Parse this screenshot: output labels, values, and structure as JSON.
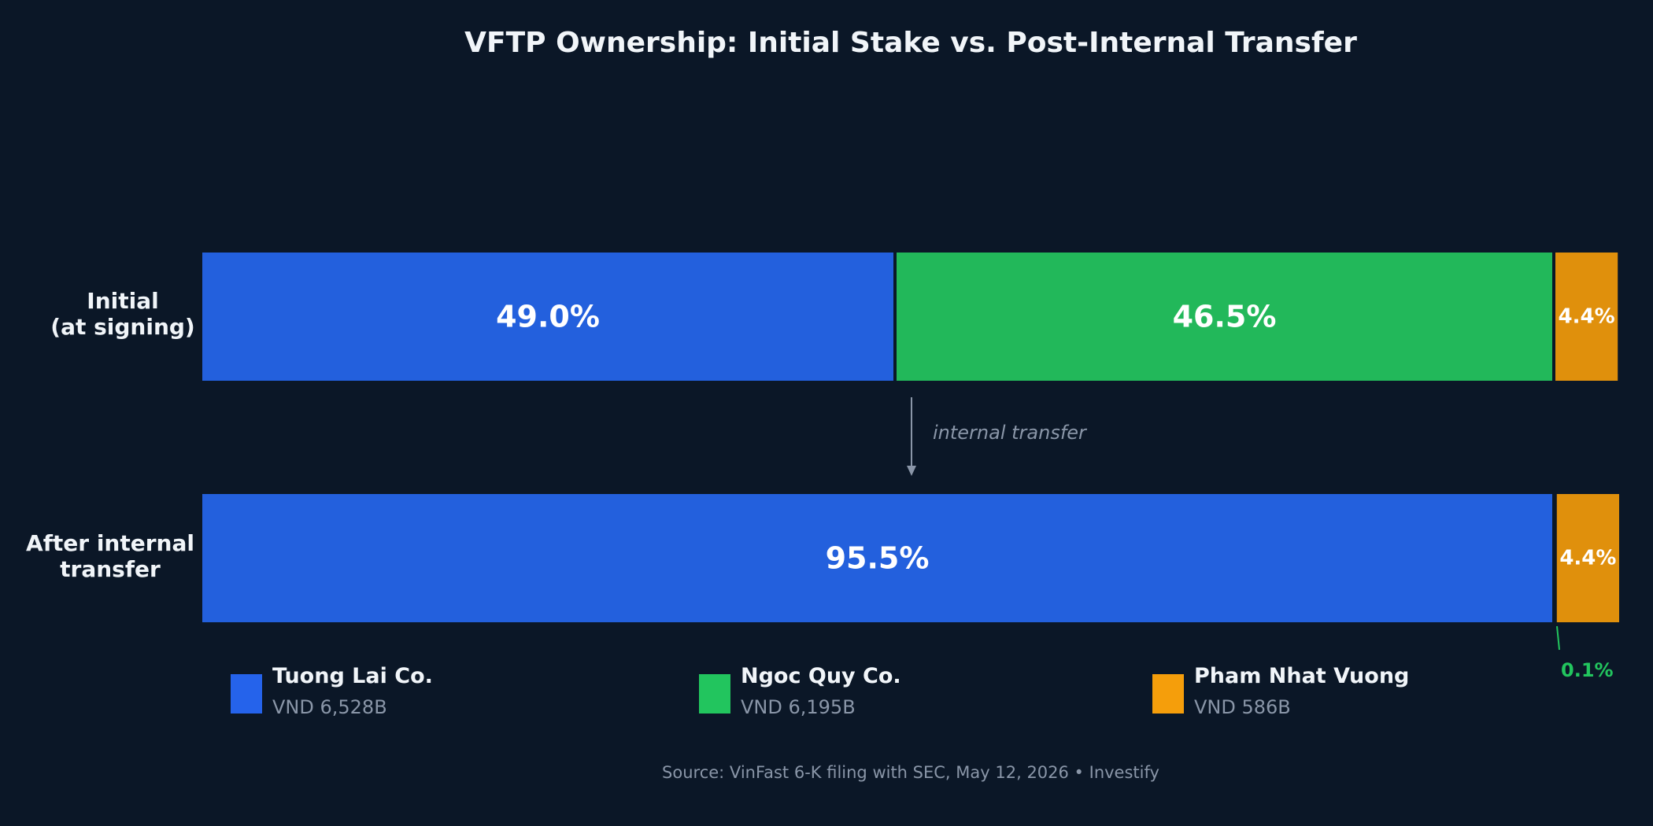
{
  "chart_data": {
    "type": "bar",
    "orientation": "horizontal",
    "stacked": true,
    "title": "VFTP Ownership: Initial Stake vs. Post-Internal Transfer",
    "xlim": [
      0,
      100
    ],
    "grid": false,
    "legend_position": "bottom",
    "categories": [
      [
        "Initial",
        "(at signing)"
      ],
      [
        "After internal",
        "transfer"
      ]
    ],
    "series": [
      {
        "name": "Tuong Lai Co.",
        "color": "#2360dd",
        "values": [
          49.0,
          95.5
        ],
        "labels": [
          "49.0%",
          "95.5%"
        ]
      },
      {
        "name": "Ngoc Quy Co.",
        "color": "#22b85a",
        "values": [
          46.5,
          0.1
        ],
        "labels": [
          "46.5%",
          ""
        ]
      },
      {
        "name": "Pham Nhat Vuong",
        "color": "#e0900c",
        "values": [
          4.4,
          4.4
        ],
        "labels": [
          "4.4%",
          "4.4%"
        ]
      }
    ],
    "annotations": {
      "transfer_note": "internal transfer",
      "residual_label": "0.1%"
    },
    "legend": [
      {
        "name": "Tuong Lai Co.",
        "value": "VND 6,528B",
        "color": "#2563eb"
      },
      {
        "name": "Ngoc Quy Co.",
        "value": "VND 6,195B",
        "color": "#22c55e"
      },
      {
        "name": "Pham Nhat Vuong",
        "value": "VND 586B",
        "color": "#f59e0b"
      }
    ],
    "source": "Source: VinFast 6-K filing with SEC, May 12, 2026  •  Investify"
  }
}
